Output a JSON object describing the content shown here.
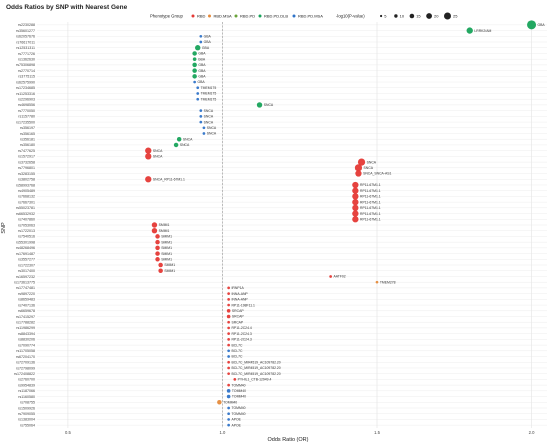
{
  "chart_data": {
    "type": "scatter",
    "title": "Odds Ratios by SNP with Nearest Gene",
    "xlabel": "Odds Ratio (OR)",
    "ylabel": "SNP",
    "xlim": [
      0.4,
      2.05
    ],
    "xticks": [
      0.5,
      1.0,
      1.5,
      2.0
    ],
    "xtick_labels": [
      "0.5",
      "1.0",
      "1.5",
      "2.0"
    ],
    "reference_line_x": 1.0,
    "grid": true,
    "legend_position": "top",
    "legend_group_title": "Phenotype Group",
    "legend_size_title": "-log10(P-value)",
    "size_legend": [
      5,
      10,
      15,
      20,
      25
    ],
    "groups": [
      {
        "name": "RBD",
        "color": "#e53935"
      },
      {
        "name": "RBD.MSA",
        "color": "#e58a3a"
      },
      {
        "name": "RBD.PD",
        "color": "#6aa33a"
      },
      {
        "name": "RBD.PD.DLB",
        "color": "#17a35a"
      },
      {
        "name": "RBD.PD.MSA",
        "color": "#2f73c8"
      }
    ],
    "snps": [
      "rs2230288",
      "rs35601277",
      "rs62057676",
      "rs76617011",
      "rs12531311",
      "rs7771726",
      "rs1362630",
      "rs75306898",
      "rs2770714",
      "rs3775115",
      "rs62575990",
      "rs17234685",
      "rs11253316",
      "rs2296903",
      "rs4698556",
      "rs7770050",
      "rs1157780",
      "rs17235500",
      "rs356197",
      "rs356165",
      "rs356181",
      "rs356180",
      "rs7477625",
      "rs1572917",
      "rs3732658",
      "rs7796801",
      "rs3283155",
      "rs3802758",
      "rs58993768",
      "rs4905489",
      "rs7668132",
      "rs7667301",
      "rs55023781",
      "rs66532932",
      "rs7407860",
      "rs7053063",
      "rs1722013",
      "rs7540516",
      "rs55301998",
      "rs48268496",
      "rs17691487",
      "rs3557277",
      "rs1722307",
      "rs3017400",
      "rs16597232",
      "rs173613775",
      "rs17747481",
      "rs9897220",
      "rs8659483",
      "rs7407136",
      "rs6659678",
      "rs17415297",
      "rs17788282",
      "rs11986299",
      "rs8843394",
      "rs8830206",
      "rs7090774",
      "rs11705058",
      "rs67204170",
      "rs72709136",
      "rs72798099",
      "rs172408822",
      "rs2760700",
      "rs9954839",
      "rs1187066",
      "rs1160580",
      "rs708755",
      "rs1509926",
      "rs7909055",
      "rs1383004",
      "rs755064"
    ],
    "series": [
      {
        "snp": "rs2230288",
        "gene": "GBA",
        "or": 2.0,
        "neglog10p": 8,
        "group": "RBD.PD.DLB"
      },
      {
        "snp": "rs35601277",
        "gene": "LRRK2/AM",
        "or": 1.8,
        "neglog10p": 5,
        "group": "RBD.PD.DLB"
      },
      {
        "snp": "rs62057676",
        "gene": "GBA",
        "or": 0.93,
        "neglog10p": 1,
        "group": "RBD.PD.MSA"
      },
      {
        "snp": "rs76617011",
        "gene": "GBA",
        "or": 0.93,
        "neglog10p": 1,
        "group": "RBD.PD.MSA"
      },
      {
        "snp": "rs12531311",
        "gene": "GBA",
        "or": 0.92,
        "neglog10p": 4,
        "group": "RBD.PD.DLB"
      },
      {
        "snp": "rs7771726",
        "gene": "GBA",
        "or": 0.91,
        "neglog10p": 3,
        "group": "RBD.PD.DLB"
      },
      {
        "snp": "rs1362630",
        "gene": "GBA",
        "or": 0.91,
        "neglog10p": 2,
        "group": "RBD.PD.DLB"
      },
      {
        "snp": "rs75306898",
        "gene": "GBA",
        "or": 0.91,
        "neglog10p": 3,
        "group": "RBD.PD.DLB"
      },
      {
        "snp": "rs2770714",
        "gene": "GBA",
        "or": 0.91,
        "neglog10p": 3,
        "group": "RBD.PD.DLB"
      },
      {
        "snp": "rs3775115",
        "gene": "GBA",
        "or": 0.91,
        "neglog10p": 3,
        "group": "RBD.PD.DLB"
      },
      {
        "snp": "rs62575990",
        "gene": "GBA",
        "or": 0.91,
        "neglog10p": 1,
        "group": "RBD.PD.MSA"
      },
      {
        "snp": "rs17234685",
        "gene": "TMEM175",
        "or": 0.92,
        "neglog10p": 1,
        "group": "RBD.PD.MSA"
      },
      {
        "snp": "rs11253316",
        "gene": "TMEM175",
        "or": 0.92,
        "neglog10p": 1,
        "group": "RBD.PD.MSA"
      },
      {
        "snp": "rs2296903",
        "gene": "TMEM175",
        "or": 0.92,
        "neglog10p": 1,
        "group": "RBD.PD.MSA"
      },
      {
        "snp": "rs4698556",
        "gene": "SNCA",
        "or": 1.12,
        "neglog10p": 4,
        "group": "RBD.PD.DLB"
      },
      {
        "snp": "rs7770050",
        "gene": "SNCA",
        "or": 0.93,
        "neglog10p": 1,
        "group": "RBD.PD.MSA"
      },
      {
        "snp": "rs1157780",
        "gene": "SNCA",
        "or": 0.93,
        "neglog10p": 1,
        "group": "RBD.PD.MSA"
      },
      {
        "snp": "rs17235500",
        "gene": "SNCA",
        "or": 0.93,
        "neglog10p": 1,
        "group": "RBD.PD.MSA"
      },
      {
        "snp": "rs356197",
        "gene": "SNCA",
        "or": 0.94,
        "neglog10p": 1,
        "group": "RBD.PD.MSA"
      },
      {
        "snp": "rs356165",
        "gene": "SNCA",
        "or": 0.94,
        "neglog10p": 1,
        "group": "RBD.PD.MSA"
      },
      {
        "snp": "rs356181",
        "gene": "SNCA",
        "or": 0.86,
        "neglog10p": 3,
        "group": "RBD.PD.DLB"
      },
      {
        "snp": "rs356180",
        "gene": "SNCA",
        "or": 0.85,
        "neglog10p": 3,
        "group": "RBD.PD.DLB"
      },
      {
        "snp": "rs7477625",
        "gene": "SNCA",
        "or": 0.76,
        "neglog10p": 5,
        "group": "RBD"
      },
      {
        "snp": "rs1572917",
        "gene": "SNCA",
        "or": 0.76,
        "neglog10p": 5,
        "group": "RBD"
      },
      {
        "snp": "rs3732658",
        "gene": "SNCA",
        "or": 1.45,
        "neglog10p": 6,
        "group": "RBD"
      },
      {
        "snp": "rs7796801",
        "gene": "SNCA",
        "or": 1.44,
        "neglog10p": 6,
        "group": "RBD"
      },
      {
        "snp": "rs3283155",
        "gene": "SNCA_SNCA-AS1",
        "or": 1.44,
        "neglog10p": 5,
        "group": "RBD"
      },
      {
        "snp": "rs3802758",
        "gene": "SNCA_RP11-67M1.1",
        "or": 0.76,
        "neglog10p": 5,
        "group": "RBD"
      },
      {
        "snp": "rs58993768",
        "gene": "RP11-67M1.1",
        "or": 1.43,
        "neglog10p": 5,
        "group": "RBD"
      },
      {
        "snp": "rs4905489",
        "gene": "RP11-67M1.1",
        "or": 1.43,
        "neglog10p": 5,
        "group": "RBD"
      },
      {
        "snp": "rs7668132",
        "gene": "RP11-67M1.1",
        "or": 1.43,
        "neglog10p": 5,
        "group": "RBD"
      },
      {
        "snp": "rs7667301",
        "gene": "RP11-67M1.1",
        "or": 1.43,
        "neglog10p": 5,
        "group": "RBD"
      },
      {
        "snp": "rs55023781",
        "gene": "RP11-67M1.1",
        "or": 1.43,
        "neglog10p": 5,
        "group": "RBD"
      },
      {
        "snp": "rs66532932",
        "gene": "RP11-67M1.1",
        "or": 1.43,
        "neglog10p": 5,
        "group": "RBD"
      },
      {
        "snp": "rs7407860",
        "gene": "RP11-67M1.1",
        "or": 1.43,
        "neglog10p": 5,
        "group": "RBD"
      },
      {
        "snp": "rs7053063",
        "gene": "SMIM1",
        "or": 0.78,
        "neglog10p": 4,
        "group": "RBD"
      },
      {
        "snp": "rs1722013",
        "gene": "SMIM1",
        "or": 0.78,
        "neglog10p": 4,
        "group": "RBD"
      },
      {
        "snp": "rs7540516",
        "gene": "SMIM1",
        "or": 0.79,
        "neglog10p": 3,
        "group": "RBD"
      },
      {
        "snp": "rs55301998",
        "gene": "SMIM1",
        "or": 0.79,
        "neglog10p": 3,
        "group": "RBD"
      },
      {
        "snp": "rs48268496",
        "gene": "SMIM1",
        "or": 0.79,
        "neglog10p": 3,
        "group": "RBD"
      },
      {
        "snp": "rs17691487",
        "gene": "SMIM1",
        "or": 0.79,
        "neglog10p": 3,
        "group": "RBD"
      },
      {
        "snp": "rs3557277",
        "gene": "SMIM1",
        "or": 0.79,
        "neglog10p": 3,
        "group": "RBD"
      },
      {
        "snp": "rs1722307",
        "gene": "SMIM1",
        "or": 0.8,
        "neglog10p": 3,
        "group": "RBD"
      },
      {
        "snp": "rs3017400",
        "gene": "SMIM1",
        "or": 0.8,
        "neglog10p": 3,
        "group": "RBD"
      },
      {
        "snp": "rs16597232",
        "gene": "AATF02",
        "or": 1.35,
        "neglog10p": 1,
        "group": "RBD"
      },
      {
        "snp": "rs173613775",
        "gene": "TMEM278",
        "or": 1.5,
        "neglog10p": 1,
        "group": "RBD.MSA"
      },
      {
        "snp": "rs17747481",
        "gene": "IRNP1A",
        "or": 1.02,
        "neglog10p": 1,
        "group": "RBD"
      },
      {
        "snp": "rs9897220",
        "gene": "INNA-ANP",
        "or": 1.02,
        "neglog10p": 1,
        "group": "RBD"
      },
      {
        "snp": "rs8659483",
        "gene": "INNA-ANP",
        "or": 1.02,
        "neglog10p": 1,
        "group": "RBD"
      },
      {
        "snp": "rs7407136",
        "gene": "RP11-198F11.1",
        "or": 1.02,
        "neglog10p": 1,
        "group": "RBD"
      },
      {
        "snp": "rs6659678",
        "gene": "SRCAP",
        "or": 1.02,
        "neglog10p": 2,
        "group": "RBD"
      },
      {
        "snp": "rs17415297",
        "gene": "SRCAP",
        "or": 1.02,
        "neglog10p": 2,
        "group": "RBD"
      },
      {
        "snp": "rs17788282",
        "gene": "SRCAP",
        "or": 1.02,
        "neglog10p": 1,
        "group": "RBD"
      },
      {
        "snp": "rs11986299",
        "gene": "RP11-2C24.4",
        "or": 1.02,
        "neglog10p": 1,
        "group": "RBD"
      },
      {
        "snp": "rs8843394",
        "gene": "RP11-2C24.3",
        "or": 1.02,
        "neglog10p": 1,
        "group": "RBD"
      },
      {
        "snp": "rs8830206",
        "gene": "RP11-2C24.3",
        "or": 1.02,
        "neglog10p": 1,
        "group": "RBD"
      },
      {
        "snp": "rs7090774",
        "gene": "BCL7C",
        "or": 1.02,
        "neglog10p": 1,
        "group": "RBD"
      },
      {
        "snp": "rs11705058",
        "gene": "BCL7C",
        "or": 1.02,
        "neglog10p": 1,
        "group": "RBD.PD.MSA"
      },
      {
        "snp": "rs67204170",
        "gene": "BCL7C",
        "or": 1.02,
        "neglog10p": 1,
        "group": "RBD.PD.MSA"
      },
      {
        "snp": "rs72709136",
        "gene": "BCL7C_MIR4519_AC109782.20",
        "or": 1.02,
        "neglog10p": 1,
        "group": "RBD"
      },
      {
        "snp": "rs72798099",
        "gene": "BCL7C_MIR4519_AC109782.20",
        "or": 1.02,
        "neglog10p": 1,
        "group": "RBD"
      },
      {
        "snp": "rs172408822",
        "gene": "BCL7C_MIR4519_AC109782.20",
        "or": 1.02,
        "neglog10p": 1,
        "group": "RBD"
      },
      {
        "snp": "rs2760700",
        "gene": "PYHIL1_CTB-12949.4",
        "or": 1.04,
        "neglog10p": 1,
        "group": "RBD"
      },
      {
        "snp": "rs9954839",
        "gene": "TOMM40",
        "or": 1.02,
        "neglog10p": 1,
        "group": "RBD"
      },
      {
        "snp": "rs1187066",
        "gene": "TOMM40",
        "or": 1.02,
        "neglog10p": 2,
        "group": "RBD.PD.MSA"
      },
      {
        "snp": "rs1160580",
        "gene": "TOMM40",
        "or": 1.02,
        "neglog10p": 2,
        "group": "RBD.PD.MSA"
      },
      {
        "snp": "rs708755",
        "gene": "TOMM40",
        "or": 0.99,
        "neglog10p": 3,
        "group": "RBD.MSA"
      },
      {
        "snp": "rs1509926",
        "gene": "TOMM40",
        "or": 1.02,
        "neglog10p": 1,
        "group": "RBD.PD.MSA"
      },
      {
        "snp": "rs7909055",
        "gene": "TOMM40",
        "or": 1.02,
        "neglog10p": 1,
        "group": "RBD.PD.MSA"
      },
      {
        "snp": "rs1383004",
        "gene": "APOE",
        "or": 1.02,
        "neglog10p": 1,
        "group": "RBD.PD.MSA"
      },
      {
        "snp": "rs755064",
        "gene": "APOE",
        "or": 1.02,
        "neglog10p": 1,
        "group": "RBD.PD.MSA"
      }
    ]
  }
}
